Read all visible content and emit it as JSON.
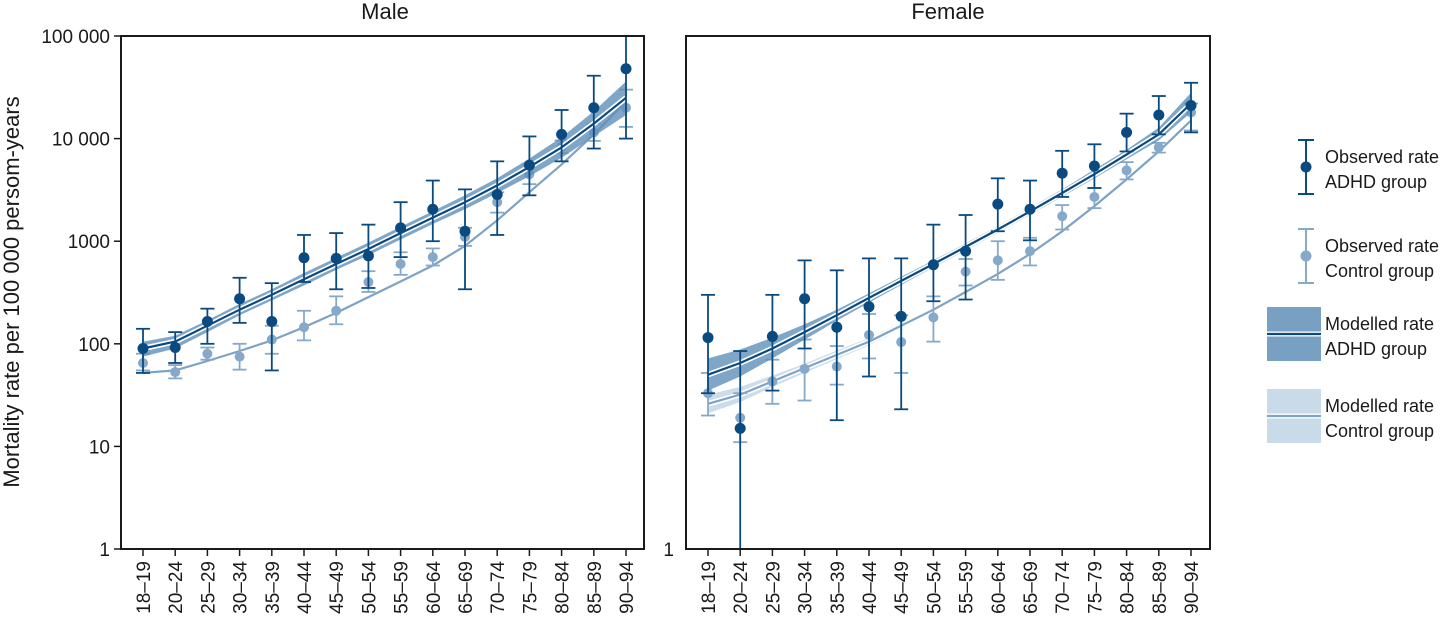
{
  "chart_data": {
    "type": "line",
    "ylabel": "Mortality rate per 100 000 persom-years",
    "yscale": "log",
    "ylim": [
      1,
      100000
    ],
    "yticks": [
      {
        "value": 1,
        "label": "1"
      },
      {
        "value": 10,
        "label": "10"
      },
      {
        "value": 100,
        "label": "100"
      },
      {
        "value": 1000,
        "label": "1000"
      },
      {
        "value": 10000,
        "label": "10 000"
      },
      {
        "value": 100000,
        "label": "100 000"
      }
    ],
    "categories": [
      "18–19",
      "20–24",
      "25–29",
      "30–34",
      "35–39",
      "40–44",
      "45–49",
      "50–54",
      "55–59",
      "60–64",
      "65–69",
      "70–74",
      "75–79",
      "80–84",
      "85–89",
      "90–94"
    ],
    "panels": [
      {
        "title": "Male",
        "y_axis_label_visible": true,
        "series": [
          {
            "name": "Observed rate ADHD group",
            "role": "observed_adhd",
            "values": [
              90,
              92,
              165,
              275,
              165,
              690,
              680,
              720,
              1350,
              2050,
              1250,
              2850,
              5500,
              11000,
              20000,
              48000
            ],
            "lower": [
              52,
              65,
              100,
              160,
              55,
              400,
              340,
              350,
              700,
              1000,
              340,
              1150,
              2800,
              6000,
              8000,
              10000
            ],
            "upper": [
              140,
              130,
              220,
              440,
              390,
              1150,
              1200,
              1450,
              2400,
              3900,
              3200,
              6000,
              10500,
              19000,
              41000,
              100000
            ]
          },
          {
            "name": "Observed rate Control group",
            "role": "observed_control",
            "values": [
              65,
              53,
              80,
              75,
              110,
              145,
              210,
              400,
              600,
              700,
              1100,
              2400,
              4500,
              8300,
              11500,
              20000
            ],
            "lower": [
              55,
              46,
              70,
              56,
              80,
              108,
              155,
              320,
              470,
              580,
              900,
              1900,
              3600,
              7200,
              9500,
              13000
            ],
            "upper": [
              80,
              62,
              92,
              100,
              150,
              210,
              290,
              510,
              780,
              850,
              1350,
              3000,
              5600,
              9600,
              14000,
              30000
            ]
          },
          {
            "name": "Modelled rate ADHD group",
            "role": "modelled_adhd",
            "values": [
              90,
              105,
              150,
              215,
              300,
              425,
              600,
              840,
              1200,
              1700,
              2400,
              3500,
              5300,
              8200,
              14000,
              25000
            ],
            "band_low": [
              75,
              90,
              130,
              190,
              265,
              370,
              525,
              730,
              1040,
              1470,
              2050,
              2950,
              4300,
              6500,
              10500,
              17000
            ],
            "band_high": [
              105,
              120,
              170,
              245,
              340,
              490,
              690,
              970,
              1380,
              1960,
              2800,
              4100,
              6400,
              10300,
              18500,
              36000
            ]
          },
          {
            "name": "Modelled rate Control group",
            "role": "modelled_control",
            "values": [
              52,
              55,
              68,
              85,
              108,
              145,
              200,
              285,
              405,
              580,
              900,
              1600,
              3000,
              5600,
              11000,
              23000
            ],
            "band_low": [
              49,
              52,
              65,
              81,
              103,
              139,
              192,
              275,
              392,
              560,
              870,
              1540,
              2880,
              5350,
              10400,
              21500
            ],
            "band_high": [
              55,
              58,
              71,
              89,
              113,
              151,
              208,
              295,
              418,
              600,
              930,
              1660,
              3120,
              5850,
              11600,
              24500
            ]
          }
        ]
      },
      {
        "title": "Female",
        "y_axis_label_visible": false,
        "series": [
          {
            "name": "Observed rate ADHD group",
            "role": "observed_adhd",
            "values": [
              115,
              15,
              118,
              275,
              145,
              230,
              185,
              590,
              800,
              2300,
              2050,
              4600,
              5400,
              11500,
              17000,
              21000
            ],
            "lower": [
              33,
              1,
              35,
              90,
              18,
              48,
              23,
              260,
              270,
              1250,
              1020,
              2700,
              3300,
              7500,
              11000,
              11500
            ],
            "upper": [
              300,
              85,
              300,
              650,
              520,
              680,
              680,
              1450,
              1800,
              4100,
              3900,
              7600,
              8800,
              17500,
              26000,
              35000
            ]
          },
          {
            "name": "Observed rate Control group",
            "role": "observed_control",
            "values": [
              33,
              19,
              43,
              57,
              60,
              122,
              104,
              181,
              505,
              650,
              800,
              1750,
              2700,
              4900,
              8200,
              18000
            ],
            "lower": [
              20,
              11,
              26,
              28,
              40,
              72,
              52,
              105,
              370,
              420,
              580,
              1300,
              2100,
              4000,
              7300,
              12000
            ],
            "upper": [
              52,
              33,
              70,
              110,
              95,
              195,
              190,
              290,
              670,
              1000,
              1080,
              2250,
              3300,
              5900,
              9100,
              22000
            ]
          },
          {
            "name": "Modelled rate ADHD group",
            "role": "modelled_adhd",
            "values": [
              50,
              65,
              90,
              130,
              190,
              280,
              410,
              600,
              880,
              1300,
              1950,
              2950,
              4500,
              7000,
              11000,
              22000
            ],
            "band_low": [
              35,
              48,
              72,
              110,
              168,
              252,
              375,
              555,
              815,
              1210,
              1810,
              2720,
              4100,
              6300,
              9600,
              18000
            ],
            "band_high": [
              72,
              88,
              115,
              155,
              215,
              310,
              450,
              650,
              950,
              1400,
              2100,
              3200,
              5000,
              7800,
              12800,
              28000
            ]
          },
          {
            "name": "Modelled rate Control group",
            "role": "modelled_control",
            "values": [
              26,
              32,
              43,
              58,
              78,
              105,
              150,
              215,
              320,
              480,
              750,
              1250,
              2200,
              4000,
              7500,
              15000
            ],
            "band_low": [
              21,
              27,
              38,
              52,
              71,
              97,
              140,
              202,
              302,
              455,
              715,
              1195,
              2100,
              3800,
              7050,
              13800
            ],
            "band_high": [
              32,
              38,
              49,
              64,
              86,
              114,
              161,
              228,
              338,
              505,
              785,
              1305,
              2300,
              4200,
              7950,
              16300
            ]
          }
        ]
      }
    ],
    "legend": [
      {
        "role": "observed_adhd",
        "line1": "Observed rate",
        "line2": "ADHD group"
      },
      {
        "role": "observed_control",
        "line1": "Observed rate",
        "line2": "Control group"
      },
      {
        "role": "modelled_adhd",
        "line1": "Modelled rate",
        "line2": "ADHD group"
      },
      {
        "role": "modelled_control",
        "line1": "Modelled rate",
        "line2": "Control group"
      }
    ],
    "legend_position": "right",
    "colors": {
      "adhd": "#0a4a7f",
      "adhd_band": "#5f8fb9",
      "control": "#86a9c9",
      "control_band": "#c3d6e6",
      "control_line": "#7ea3c5"
    }
  }
}
